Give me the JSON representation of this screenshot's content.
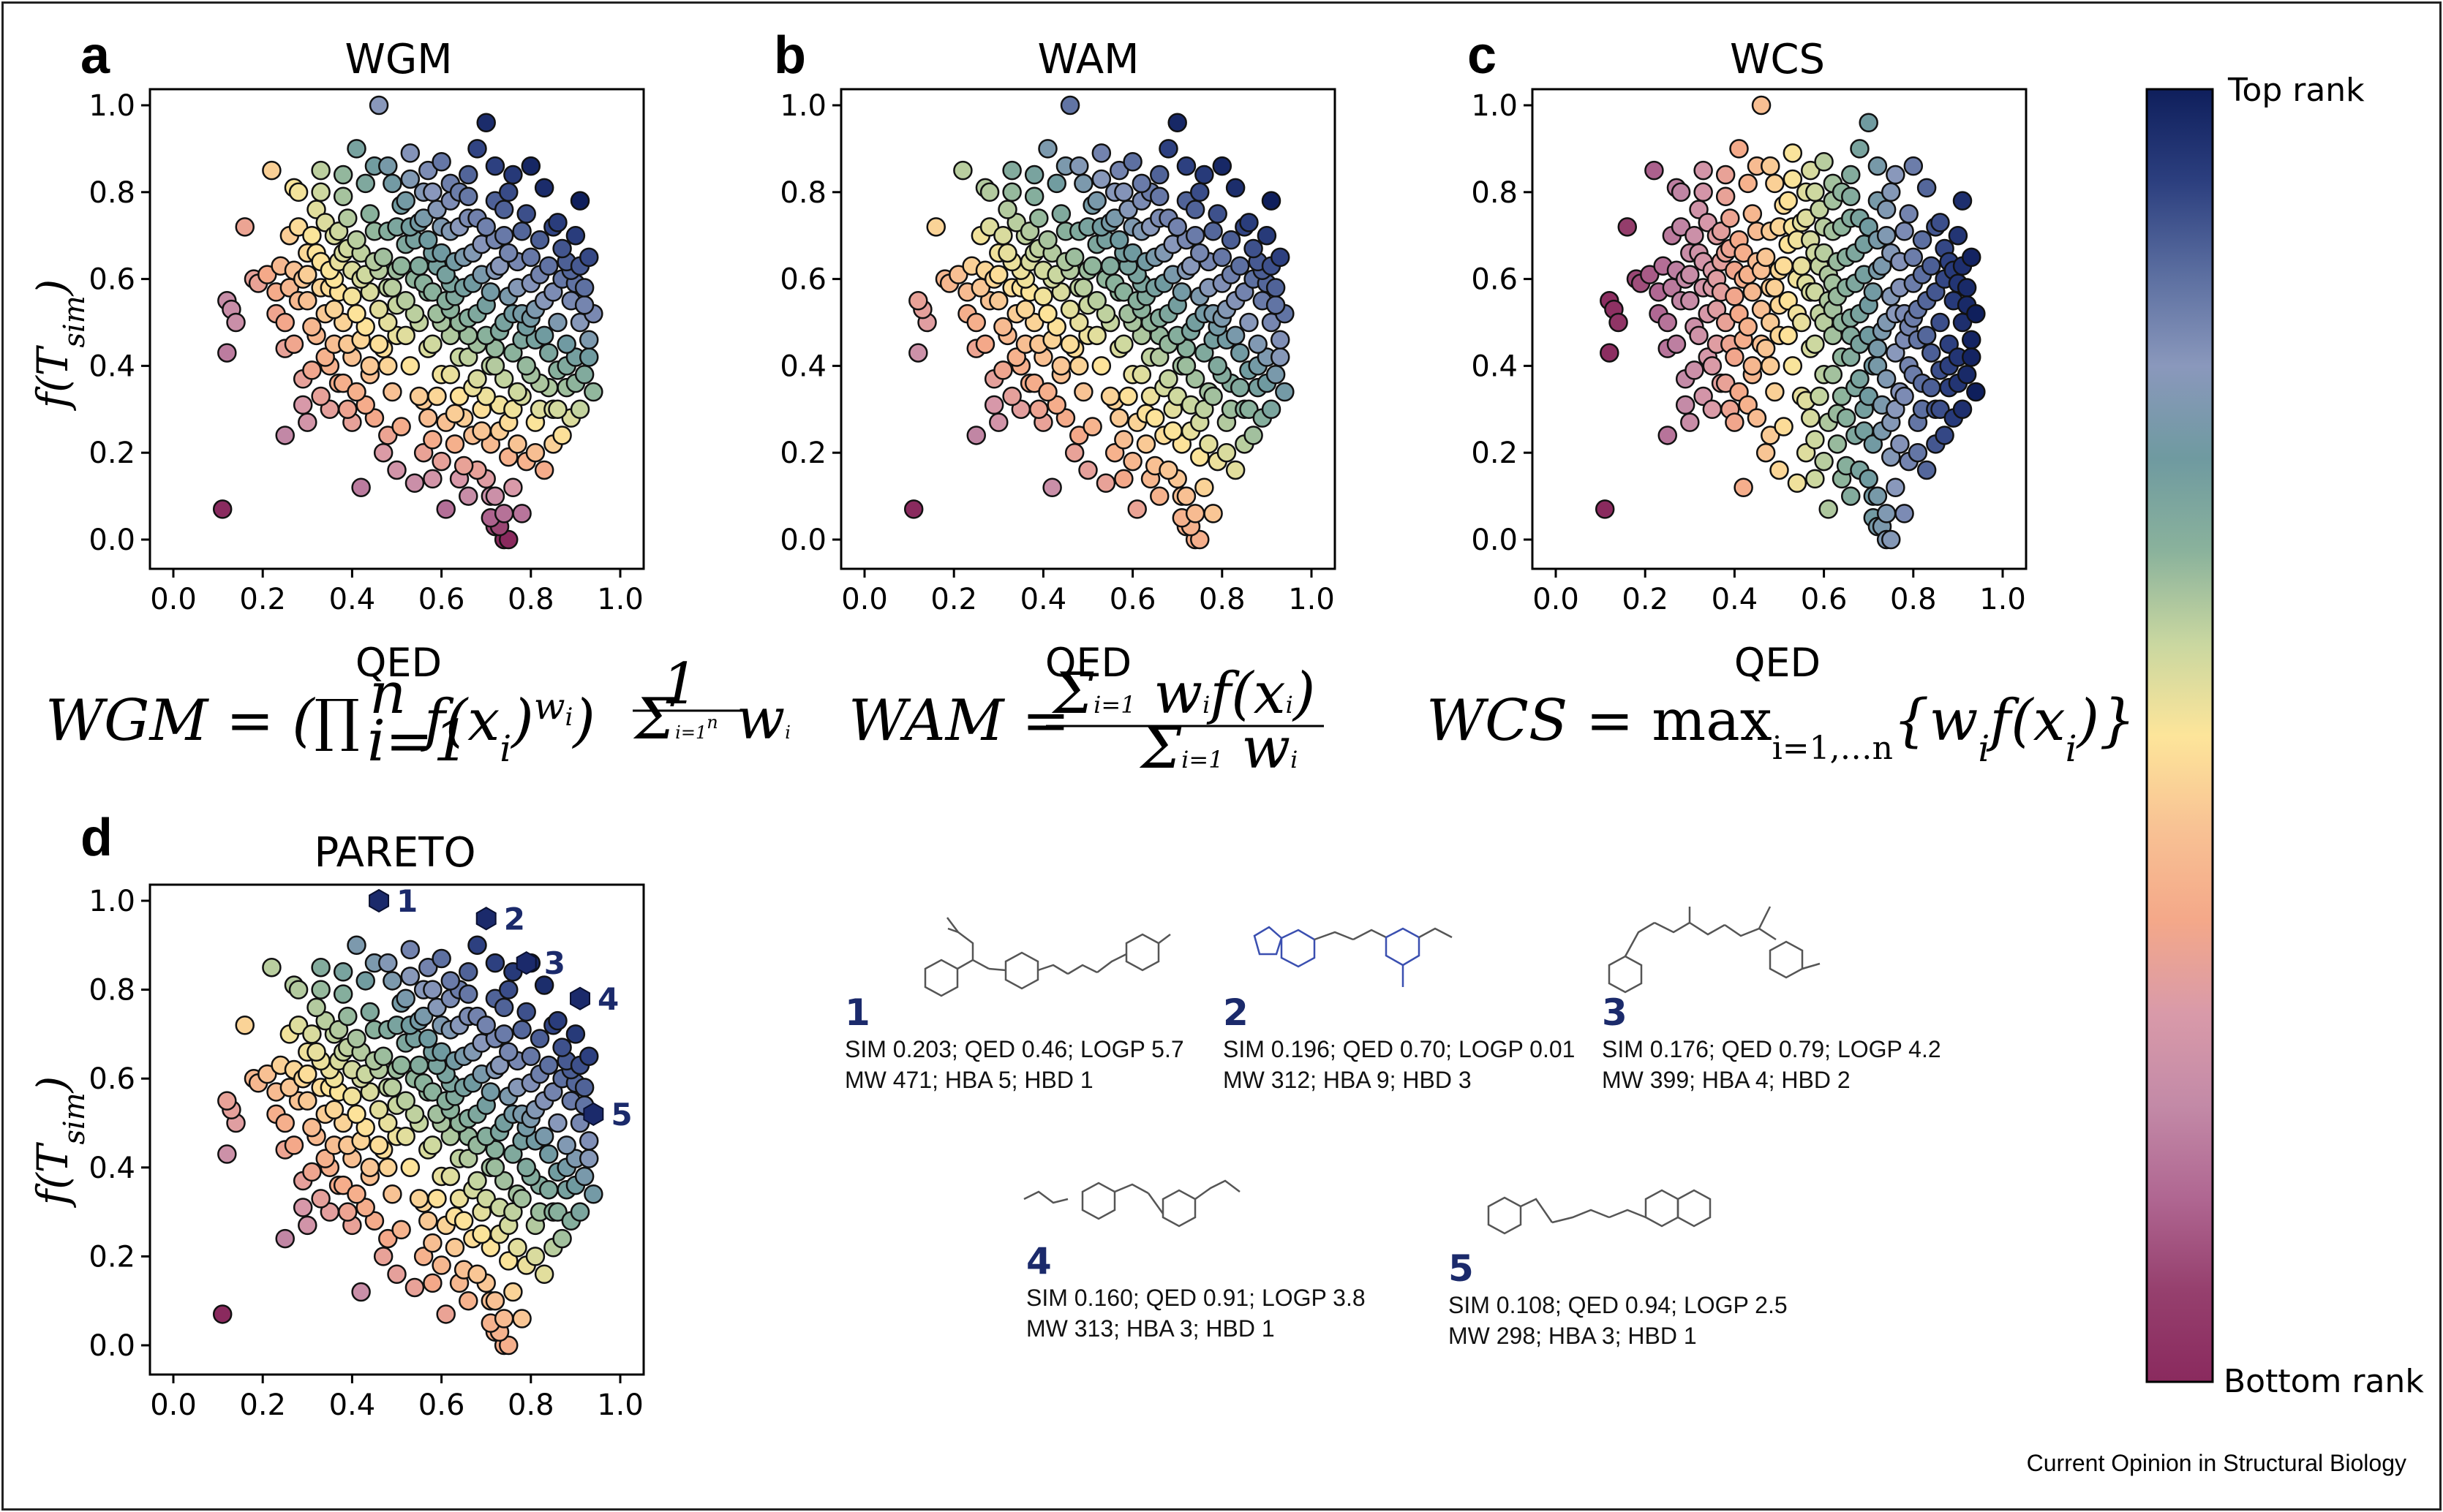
{
  "figure": {
    "credit": "Current Opinion in Structural Biology",
    "colorbar": {
      "top_label": "Top rank",
      "bottom_label": "Bottom rank",
      "colors": [
        "#0f1f5c",
        "#2c3f7f",
        "#5b6ea0",
        "#8a98bc",
        "#6f9aa0",
        "#8ab29c",
        "#c9d7a0",
        "#fde59a",
        "#f8c294",
        "#f4a889",
        "#d99aa9",
        "#c38aa7",
        "#b06792",
        "#96406e",
        "#8a2a5e"
      ]
    }
  },
  "chart_data": [
    {
      "type": "scatter",
      "panel": "a",
      "title": "WGM",
      "xlabel": "QED",
      "ylabel": "f(T_sim)",
      "xlim": [
        0.0,
        1.0
      ],
      "ylim": [
        0.0,
        1.0
      ],
      "xticks": [
        "0.0",
        "0.2",
        "0.4",
        "0.6",
        "0.8",
        "1.0"
      ],
      "yticks": [
        "0.0",
        "0.2",
        "0.4",
        "0.6",
        "0.8",
        "1.0"
      ],
      "formula": "WGM = (∏ f(xᵢ)^wᵢ)^(1/Σwᵢ)",
      "color_rule": "wgm"
    },
    {
      "type": "scatter",
      "panel": "b",
      "title": "WAM",
      "xlabel": "QED",
      "ylabel": "",
      "xlim": [
        0.0,
        1.0
      ],
      "ylim": [
        0.0,
        1.0
      ],
      "xticks": [
        "0.0",
        "0.2",
        "0.4",
        "0.6",
        "0.8",
        "1.0"
      ],
      "yticks": [
        "0.0",
        "0.2",
        "0.4",
        "0.6",
        "0.8",
        "1.0"
      ],
      "formula": "WAM = Σ wᵢ f(xᵢ) / Σ wᵢ",
      "color_rule": "wam"
    },
    {
      "type": "scatter",
      "panel": "c",
      "title": "WCS",
      "xlabel": "QED",
      "ylabel": "",
      "xlim": [
        0.0,
        1.0
      ],
      "ylim": [
        0.0,
        1.0
      ],
      "xticks": [
        "0.0",
        "0.2",
        "0.4",
        "0.6",
        "0.8",
        "1.0"
      ],
      "yticks": [
        "0.0",
        "0.2",
        "0.4",
        "0.6",
        "0.8",
        "1.0"
      ],
      "formula": "WCS = max i=1,…n {wᵢ f(xᵢ)}",
      "color_rule": "wcs"
    },
    {
      "type": "scatter",
      "panel": "d",
      "title": "PARETO",
      "xlabel": "",
      "ylabel": "f(T_sim)",
      "xlim": [
        0.0,
        1.0
      ],
      "ylim": [
        0.0,
        1.0
      ],
      "xticks": [
        "0.0",
        "0.2",
        "0.4",
        "0.6",
        "0.8",
        "1.0"
      ],
      "yticks": [
        "0.0",
        "0.2",
        "0.4",
        "0.6",
        "0.8",
        "1.0"
      ],
      "formula": "",
      "color_rule": "pareto",
      "highlighted": [
        {
          "label": "1",
          "x": 0.46,
          "y": 1.0
        },
        {
          "label": "2",
          "x": 0.7,
          "y": 0.96
        },
        {
          "label": "3",
          "x": 0.79,
          "y": 0.86
        },
        {
          "label": "4",
          "x": 0.91,
          "y": 0.78
        },
        {
          "label": "5",
          "x": 0.94,
          "y": 0.52
        }
      ]
    }
  ],
  "scatter_points": [
    [
      0.11,
      0.07
    ],
    [
      0.12,
      0.43
    ],
    [
      0.12,
      0.55
    ],
    [
      0.13,
      0.53
    ],
    [
      0.14,
      0.5
    ],
    [
      0.16,
      0.72
    ],
    [
      0.18,
      0.6
    ],
    [
      0.19,
      0.59
    ],
    [
      0.21,
      0.61
    ],
    [
      0.22,
      0.85
    ],
    [
      0.23,
      0.52
    ],
    [
      0.24,
      0.63
    ],
    [
      0.25,
      0.24
    ],
    [
      0.25,
      0.44
    ],
    [
      0.26,
      0.7
    ],
    [
      0.27,
      0.81
    ],
    [
      0.28,
      0.55
    ],
    [
      0.29,
      0.37
    ],
    [
      0.3,
      0.66
    ],
    [
      0.3,
      0.27
    ],
    [
      0.31,
      0.49
    ],
    [
      0.32,
      0.76
    ],
    [
      0.33,
      0.85
    ],
    [
      0.33,
      0.58
    ],
    [
      0.34,
      0.42
    ],
    [
      0.35,
      0.3
    ],
    [
      0.36,
      0.7
    ],
    [
      0.36,
      0.53
    ],
    [
      0.37,
      0.64
    ],
    [
      0.38,
      0.36
    ],
    [
      0.38,
      0.79
    ],
    [
      0.39,
      0.45
    ],
    [
      0.4,
      0.56
    ],
    [
      0.4,
      0.27
    ],
    [
      0.41,
      0.9
    ],
    [
      0.41,
      0.69
    ],
    [
      0.42,
      0.12
    ],
    [
      0.42,
      0.6
    ],
    [
      0.43,
      0.49
    ],
    [
      0.44,
      0.75
    ],
    [
      0.44,
      0.38
    ],
    [
      0.45,
      0.86
    ],
    [
      0.45,
      0.64
    ],
    [
      0.46,
      1.0
    ],
    [
      0.46,
      0.53
    ],
    [
      0.47,
      0.44
    ],
    [
      0.47,
      0.2
    ],
    [
      0.48,
      0.71
    ],
    [
      0.48,
      0.58
    ],
    [
      0.49,
      0.82
    ],
    [
      0.49,
      0.34
    ],
    [
      0.5,
      0.62
    ],
    [
      0.5,
      0.47
    ],
    [
      0.51,
      0.77
    ],
    [
      0.51,
      0.26
    ],
    [
      0.52,
      0.55
    ],
    [
      0.52,
      0.68
    ],
    [
      0.53,
      0.4
    ],
    [
      0.53,
      0.89
    ],
    [
      0.54,
      0.6
    ],
    [
      0.54,
      0.13
    ],
    [
      0.55,
      0.73
    ],
    [
      0.55,
      0.5
    ],
    [
      0.56,
      0.32
    ],
    [
      0.56,
      0.8
    ],
    [
      0.57,
      0.57
    ],
    [
      0.57,
      0.44
    ],
    [
      0.58,
      0.66
    ],
    [
      0.58,
      0.23
    ],
    [
      0.59,
      0.76
    ],
    [
      0.59,
      0.52
    ],
    [
      0.6,
      0.38
    ],
    [
      0.6,
      0.87
    ],
    [
      0.61,
      0.61
    ],
    [
      0.61,
      0.07
    ],
    [
      0.62,
      0.47
    ],
    [
      0.62,
      0.71
    ],
    [
      0.63,
      0.29
    ],
    [
      0.63,
      0.56
    ],
    [
      0.64,
      0.8
    ],
    [
      0.64,
      0.42
    ],
    [
      0.65,
      0.65
    ],
    [
      0.65,
      0.17
    ],
    [
      0.66,
      0.51
    ],
    [
      0.66,
      0.74
    ],
    [
      0.67,
      0.35
    ],
    [
      0.67,
      0.59
    ],
    [
      0.68,
      0.9
    ],
    [
      0.68,
      0.45
    ],
    [
      0.69,
      0.68
    ],
    [
      0.69,
      0.25
    ],
    [
      0.7,
      0.54
    ],
    [
      0.7,
      0.96
    ],
    [
      0.71,
      0.1
    ],
    [
      0.71,
      0.4
    ],
    [
      0.72,
      0.78
    ],
    [
      0.72,
      0.62
    ],
    [
      0.72,
      0.03
    ],
    [
      0.73,
      0.48
    ],
    [
      0.73,
      0.31
    ],
    [
      0.74,
      0.7
    ],
    [
      0.74,
      0.0
    ],
    [
      0.75,
      0.56
    ],
    [
      0.75,
      0.19
    ],
    [
      0.76,
      0.84
    ],
    [
      0.76,
      0.43
    ],
    [
      0.77,
      0.64
    ],
    [
      0.77,
      0.34
    ],
    [
      0.78,
      0.52
    ],
    [
      0.78,
      0.06
    ],
    [
      0.79,
      0.75
    ],
    [
      0.79,
      0.4
    ],
    [
      0.8,
      0.86
    ],
    [
      0.8,
      0.59
    ],
    [
      0.81,
      0.27
    ],
    [
      0.81,
      0.46
    ],
    [
      0.82,
      0.69
    ],
    [
      0.82,
      0.36
    ],
    [
      0.83,
      0.55
    ],
    [
      0.83,
      0.81
    ],
    [
      0.84,
      0.43
    ],
    [
      0.84,
      0.63
    ],
    [
      0.85,
      0.3
    ],
    [
      0.85,
      0.72
    ],
    [
      0.86,
      0.5
    ],
    [
      0.86,
      0.39
    ],
    [
      0.87,
      0.6
    ],
    [
      0.87,
      0.67
    ],
    [
      0.88,
      0.45
    ],
    [
      0.88,
      0.35
    ],
    [
      0.89,
      0.55
    ],
    [
      0.89,
      0.62
    ],
    [
      0.9,
      0.42
    ],
    [
      0.9,
      0.7
    ],
    [
      0.91,
      0.78
    ],
    [
      0.91,
      0.5
    ],
    [
      0.92,
      0.38
    ],
    [
      0.92,
      0.58
    ],
    [
      0.93,
      0.65
    ],
    [
      0.93,
      0.46
    ],
    [
      0.94,
      0.52
    ],
    [
      0.94,
      0.34
    ],
    [
      0.35,
      0.62
    ],
    [
      0.37,
      0.57
    ],
    [
      0.39,
      0.67
    ],
    [
      0.41,
      0.52
    ],
    [
      0.43,
      0.61
    ],
    [
      0.45,
      0.71
    ],
    [
      0.47,
      0.65
    ],
    [
      0.49,
      0.58
    ],
    [
      0.51,
      0.63
    ],
    [
      0.53,
      0.72
    ],
    [
      0.55,
      0.63
    ],
    [
      0.57,
      0.69
    ],
    [
      0.59,
      0.63
    ],
    [
      0.61,
      0.55
    ],
    [
      0.63,
      0.64
    ],
    [
      0.65,
      0.58
    ],
    [
      0.67,
      0.66
    ],
    [
      0.69,
      0.61
    ],
    [
      0.71,
      0.57
    ],
    [
      0.73,
      0.63
    ],
    [
      0.75,
      0.66
    ],
    [
      0.77,
      0.58
    ],
    [
      0.79,
      0.49
    ],
    [
      0.81,
      0.53
    ],
    [
      0.83,
      0.47
    ],
    [
      0.85,
      0.57
    ],
    [
      0.62,
      0.38
    ],
    [
      0.64,
      0.33
    ],
    [
      0.66,
      0.42
    ],
    [
      0.68,
      0.37
    ],
    [
      0.7,
      0.33
    ],
    [
      0.72,
      0.4
    ],
    [
      0.74,
      0.37
    ],
    [
      0.76,
      0.3
    ],
    [
      0.78,
      0.33
    ],
    [
      0.8,
      0.38
    ],
    [
      0.82,
      0.3
    ],
    [
      0.84,
      0.35
    ],
    [
      0.86,
      0.3
    ],
    [
      0.88,
      0.4
    ],
    [
      0.58,
      0.45
    ],
    [
      0.6,
      0.5
    ],
    [
      0.62,
      0.53
    ],
    [
      0.64,
      0.5
    ],
    [
      0.66,
      0.47
    ],
    [
      0.68,
      0.52
    ],
    [
      0.7,
      0.47
    ],
    [
      0.72,
      0.44
    ],
    [
      0.74,
      0.5
    ],
    [
      0.76,
      0.52
    ],
    [
      0.78,
      0.46
    ],
    [
      0.8,
      0.51
    ],
    [
      0.4,
      0.62
    ],
    [
      0.42,
      0.66
    ],
    [
      0.44,
      0.57
    ],
    [
      0.46,
      0.62
    ],
    [
      0.48,
      0.5
    ],
    [
      0.5,
      0.54
    ],
    [
      0.52,
      0.47
    ],
    [
      0.54,
      0.52
    ],
    [
      0.56,
      0.59
    ],
    [
      0.58,
      0.57
    ],
    [
      0.6,
      0.66
    ],
    [
      0.62,
      0.59
    ],
    [
      0.5,
      0.72
    ],
    [
      0.52,
      0.78
    ],
    [
      0.54,
      0.69
    ],
    [
      0.56,
      0.74
    ],
    [
      0.58,
      0.8
    ],
    [
      0.6,
      0.72
    ],
    [
      0.62,
      0.78
    ],
    [
      0.64,
      0.72
    ],
    [
      0.66,
      0.79
    ],
    [
      0.68,
      0.74
    ],
    [
      0.7,
      0.72
    ],
    [
      0.72,
      0.69
    ],
    [
      0.74,
      0.76
    ],
    [
      0.78,
      0.71
    ],
    [
      0.8,
      0.65
    ],
    [
      0.82,
      0.61
    ],
    [
      0.28,
      0.72
    ],
    [
      0.3,
      0.61
    ],
    [
      0.32,
      0.66
    ],
    [
      0.34,
      0.73
    ],
    [
      0.36,
      0.6
    ],
    [
      0.38,
      0.66
    ],
    [
      0.3,
      0.55
    ],
    [
      0.32,
      0.47
    ],
    [
      0.34,
      0.52
    ],
    [
      0.36,
      0.45
    ],
    [
      0.38,
      0.5
    ],
    [
      0.4,
      0.42
    ],
    [
      0.42,
      0.46
    ],
    [
      0.44,
      0.4
    ],
    [
      0.46,
      0.45
    ],
    [
      0.48,
      0.4
    ],
    [
      0.26,
      0.58
    ],
    [
      0.27,
      0.62
    ],
    [
      0.29,
      0.6
    ],
    [
      0.31,
      0.7
    ],
    [
      0.33,
      0.64
    ],
    [
      0.35,
      0.58
    ],
    [
      0.37,
      0.71
    ],
    [
      0.39,
      0.74
    ],
    [
      0.55,
      0.33
    ],
    [
      0.57,
      0.28
    ],
    [
      0.59,
      0.33
    ],
    [
      0.61,
      0.27
    ],
    [
      0.63,
      0.22
    ],
    [
      0.65,
      0.28
    ],
    [
      0.67,
      0.24
    ],
    [
      0.69,
      0.3
    ],
    [
      0.71,
      0.22
    ],
    [
      0.73,
      0.25
    ],
    [
      0.75,
      0.27
    ],
    [
      0.77,
      0.22
    ],
    [
      0.79,
      0.18
    ],
    [
      0.81,
      0.2
    ],
    [
      0.83,
      0.16
    ],
    [
      0.85,
      0.22
    ],
    [
      0.7,
      0.14
    ],
    [
      0.72,
      0.1
    ],
    [
      0.74,
      0.06
    ],
    [
      0.76,
      0.12
    ],
    [
      0.73,
      0.03
    ],
    [
      0.75,
      0.0
    ],
    [
      0.71,
      0.05
    ],
    [
      0.68,
      0.16
    ],
    [
      0.66,
      0.1
    ],
    [
      0.64,
      0.14
    ],
    [
      0.6,
      0.18
    ],
    [
      0.58,
      0.14
    ],
    [
      0.56,
      0.2
    ],
    [
      0.5,
      0.16
    ],
    [
      0.48,
      0.24
    ],
    [
      0.45,
      0.28
    ],
    [
      0.43,
      0.31
    ],
    [
      0.41,
      0.34
    ],
    [
      0.39,
      0.3
    ],
    [
      0.37,
      0.36
    ],
    [
      0.35,
      0.4
    ],
    [
      0.33,
      0.33
    ],
    [
      0.31,
      0.39
    ],
    [
      0.29,
      0.31
    ],
    [
      0.27,
      0.45
    ],
    [
      0.25,
      0.5
    ],
    [
      0.23,
      0.57
    ],
    [
      0.28,
      0.8
    ],
    [
      0.33,
      0.8
    ],
    [
      0.38,
      0.84
    ],
    [
      0.43,
      0.82
    ],
    [
      0.48,
      0.86
    ],
    [
      0.53,
      0.83
    ],
    [
      0.57,
      0.85
    ],
    [
      0.62,
      0.82
    ],
    [
      0.66,
      0.84
    ],
    [
      0.72,
      0.86
    ],
    [
      0.75,
      0.8
    ],
    [
      0.86,
      0.73
    ],
    [
      0.88,
      0.64
    ],
    [
      0.9,
      0.59
    ],
    [
      0.91,
      0.63
    ],
    [
      0.92,
      0.54
    ],
    [
      0.93,
      0.42
    ],
    [
      0.91,
      0.3
    ],
    [
      0.89,
      0.28
    ],
    [
      0.87,
      0.24
    ],
    [
      0.9,
      0.36
    ]
  ],
  "compounds": [
    {
      "num": "1",
      "line1": "SIM   0.203; QED 0.46; LOGP 5.7",
      "line2": "MW   471; HBA 5; HBD  1"
    },
    {
      "num": "2",
      "line1": "SIM 0.196; QED 0.70; LOGP 0.01",
      "line2": "MW    312; HBA 9; HBD 3"
    },
    {
      "num": "3",
      "line1": "SIM   0.176; QED 0.79; LOGP 4.2",
      "line2": "MW   399; HBA 4; HBD 2"
    },
    {
      "num": "4",
      "line1": "SIM   0.160; QED 0.91; LOGP 3.8",
      "line2": "MW   313; HBA 3; HBD 1"
    },
    {
      "num": "5",
      "line1": "SIM   0.108; QED 0.94; LOGP 2.5",
      "line2": "MW    298; HBA 3; HBD 1"
    }
  ]
}
